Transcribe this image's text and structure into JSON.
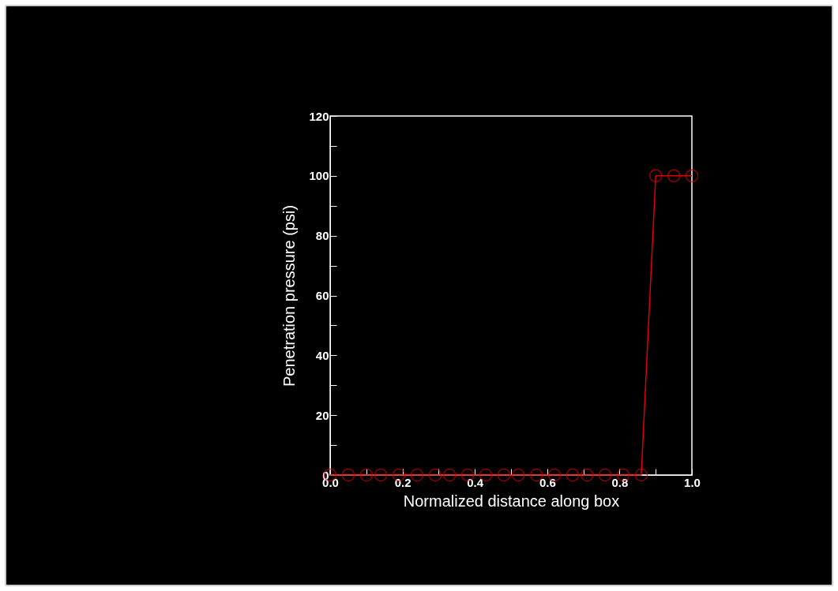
{
  "chart_data": {
    "type": "line",
    "xlabel": "Normalized distance along box",
    "ylabel": "Penetration pressure (psi)",
    "x": [
      0,
      0.05,
      0.1,
      0.14,
      0.19,
      0.24,
      0.29,
      0.33,
      0.38,
      0.43,
      0.48,
      0.52,
      0.57,
      0.62,
      0.67,
      0.71,
      0.76,
      0.81,
      0.86,
      0.9,
      0.95,
      1
    ],
    "series": [
      {
        "color": "#e00000",
        "values": [
          0,
          0,
          0,
          0,
          0,
          0,
          0,
          0,
          0,
          0,
          0,
          0,
          0,
          0,
          0,
          0,
          0,
          0,
          0,
          100,
          100,
          100
        ]
      }
    ],
    "xlim": [
      0,
      1
    ],
    "ylim": [
      0,
      120
    ],
    "xticks": [
      {
        "value": 0,
        "label": "0.0"
      },
      {
        "value": 0.1,
        "label": null
      },
      {
        "value": 0.2,
        "label": "0.2"
      },
      {
        "value": 0.3,
        "label": null
      },
      {
        "value": 0.4,
        "label": "0.4"
      },
      {
        "value": 0.5,
        "label": null
      },
      {
        "value": 0.6,
        "label": "0.6"
      },
      {
        "value": 0.7,
        "label": null
      },
      {
        "value": 0.8,
        "label": "0.8"
      },
      {
        "value": 0.9,
        "label": null
      },
      {
        "value": 1,
        "label": "1.0"
      }
    ],
    "yticks": [
      0,
      {
        "value": 10,
        "label": null
      },
      20,
      {
        "value": 30,
        "label": null
      },
      40,
      {
        "value": 50,
        "label": null
      },
      60,
      {
        "value": 70,
        "label": null
      },
      80,
      {
        "value": 90,
        "label": null
      },
      100,
      {
        "value": 110,
        "label": null
      },
      120
    ],
    "grid": false,
    "marker": "circle",
    "line_style": "solid",
    "legend": false
  }
}
